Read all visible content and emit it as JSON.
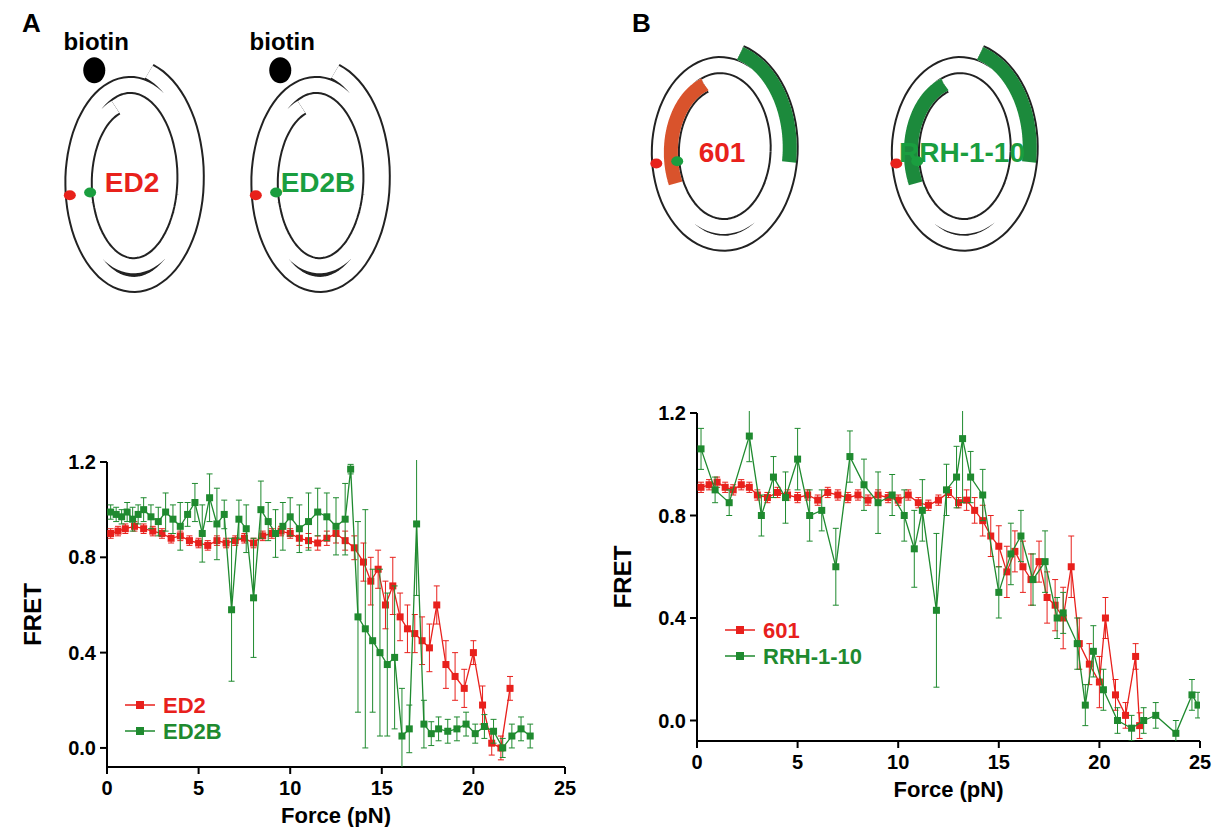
{
  "chart_data": [
    {
      "type": "line",
      "panel": "A",
      "schematics": [
        {
          "label": "ED2",
          "color": "#e8211b",
          "tag": "biotin"
        },
        {
          "label": "ED2B",
          "color": "#1a9e3f",
          "tag": "biotin"
        }
      ],
      "x_label": "Force (pN)",
      "y_label": "FRET",
      "xlim": [
        0,
        25
      ],
      "xticks": [
        0,
        5,
        10,
        15,
        20,
        25
      ],
      "ylim": [
        -0.08,
        1.2
      ],
      "yticks": [
        {
          "value": 0,
          "label": "0.0"
        },
        0.4,
        0.8,
        {
          "value": 1.2,
          "label": "1.2"
        }
      ],
      "legend": "lower left",
      "series": [
        {
          "name": "ED2",
          "color": "#e8201c",
          "marker": "square",
          "line_style": "solid",
          "x": [
            0.2,
            0.6,
            1.0,
            1.5,
            2.0,
            2.5,
            3.0,
            3.5,
            4.0,
            4.5,
            5.0,
            5.5,
            6.0,
            6.5,
            7.0,
            7.5,
            8.0,
            8.5,
            9.0,
            9.5,
            10.0,
            10.5,
            11.0,
            11.5,
            12.0,
            12.5,
            13.0,
            13.5,
            14.0,
            14.4,
            14.8,
            15.2,
            15.6,
            16.0,
            16.4,
            16.8,
            17.2,
            17.6,
            18.0,
            18.5,
            19.0,
            19.5,
            20.0,
            20.5,
            21.0,
            21.5,
            22.0
          ],
          "values": [
            0.9,
            0.91,
            0.92,
            0.93,
            0.92,
            0.91,
            0.9,
            0.88,
            0.89,
            0.87,
            0.86,
            0.85,
            0.87,
            0.86,
            0.87,
            0.88,
            0.86,
            0.89,
            0.9,
            0.91,
            0.9,
            0.88,
            0.87,
            0.86,
            0.88,
            0.9,
            0.87,
            0.84,
            0.78,
            0.7,
            0.75,
            0.6,
            0.68,
            0.55,
            0.5,
            0.48,
            0.45,
            0.42,
            0.6,
            0.35,
            0.3,
            0.25,
            0.4,
            0.18,
            0.02,
            0.0,
            0.25
          ],
          "errors": [
            0.02,
            0.02,
            0.02,
            0.02,
            0.02,
            0.02,
            0.02,
            0.02,
            0.02,
            0.02,
            0.02,
            0.02,
            0.02,
            0.02,
            0.02,
            0.02,
            0.02,
            0.02,
            0.02,
            0.02,
            0.02,
            0.03,
            0.03,
            0.03,
            0.03,
            0.04,
            0.04,
            0.05,
            0.08,
            0.1,
            0.08,
            0.1,
            0.12,
            0.1,
            0.1,
            0.08,
            0.1,
            0.1,
            0.08,
            0.1,
            0.1,
            0.08,
            0.05,
            0.08,
            0.05,
            0.05,
            0.05
          ]
        },
        {
          "name": "ED2B",
          "color": "#1f8a2f",
          "marker": "square",
          "line_style": "solid",
          "x": [
            0.2,
            0.5,
            0.8,
            1.1,
            1.4,
            1.7,
            2.0,
            2.4,
            2.8,
            3.2,
            3.6,
            4.0,
            4.4,
            4.8,
            5.2,
            5.6,
            6.0,
            6.4,
            6.8,
            7.2,
            7.6,
            8.0,
            8.4,
            8.8,
            9.2,
            9.6,
            10.0,
            10.5,
            11.0,
            11.5,
            12.0,
            12.5,
            13.0,
            13.3,
            13.7,
            14.1,
            14.5,
            14.9,
            15.3,
            15.7,
            16.1,
            16.5,
            16.9,
            17.3,
            17.7,
            18.1,
            18.6,
            19.1,
            19.6,
            20.1,
            20.6,
            21.1,
            21.6,
            22.1,
            22.6,
            23.1
          ],
          "values": [
            0.99,
            0.98,
            0.97,
            0.99,
            0.96,
            0.98,
            1.0,
            0.97,
            0.95,
            0.99,
            0.96,
            0.93,
            0.98,
            1.03,
            0.9,
            1.05,
            0.94,
            0.98,
            0.58,
            0.96,
            0.92,
            0.63,
            1.0,
            0.95,
            0.9,
            0.93,
            0.97,
            0.92,
            0.95,
            0.99,
            0.97,
            0.93,
            0.96,
            1.17,
            0.55,
            0.5,
            0.45,
            0.4,
            0.35,
            0.38,
            0.05,
            0.08,
            0.94,
            0.1,
            0.06,
            0.08,
            0.07,
            0.08,
            0.1,
            0.06,
            0.09,
            0.07,
            0.0,
            0.05,
            0.08,
            0.05
          ],
          "errors": [
            0.03,
            0.03,
            0.03,
            0.04,
            0.05,
            0.04,
            0.05,
            0.05,
            0.06,
            0.08,
            0.06,
            0.1,
            0.05,
            0.08,
            0.12,
            0.1,
            0.15,
            0.06,
            0.3,
            0.08,
            0.1,
            0.25,
            0.12,
            0.08,
            0.1,
            0.1,
            0.08,
            0.1,
            0.12,
            0.1,
            0.1,
            0.12,
            0.15,
            0.02,
            0.4,
            0.5,
            0.3,
            0.35,
            0.3,
            0.3,
            0.2,
            0.1,
            0.3,
            0.1,
            0.05,
            0.05,
            0.05,
            0.05,
            0.05,
            0.04,
            0.05,
            0.05,
            0.04,
            0.05,
            0.05,
            0.05
          ]
        }
      ]
    },
    {
      "type": "line",
      "panel": "B",
      "schematics": [
        {
          "label": "601",
          "color": "#e8211b",
          "segment_colors": [
            "#d9532c",
            "#1c8a3c"
          ]
        },
        {
          "label": "RRH-1-10",
          "color": "#1a9e3f",
          "segment_colors": [
            "#1c8a3c",
            "#1c8a3c"
          ]
        }
      ],
      "x_label": "Force (pN)",
      "y_label": "FRET",
      "xlim": [
        0,
        25
      ],
      "xticks": [
        0,
        5,
        10,
        15,
        20,
        25
      ],
      "ylim": [
        -0.08,
        1.2
      ],
      "yticks": [
        {
          "value": 0,
          "label": "0.0"
        },
        0.4,
        0.8,
        {
          "value": 1.2,
          "label": "1.2"
        }
      ],
      "legend": "lower left",
      "series": [
        {
          "name": "601",
          "color": "#e8201c",
          "marker": "square",
          "line_style": "solid",
          "x": [
            0.2,
            0.6,
            1.0,
            1.4,
            1.8,
            2.2,
            2.6,
            3.0,
            3.5,
            4.0,
            4.5,
            5.0,
            5.5,
            6.0,
            6.5,
            7.0,
            7.5,
            8.0,
            8.5,
            9.0,
            9.5,
            10.0,
            10.5,
            11.0,
            11.5,
            12.0,
            12.5,
            13.0,
            13.4,
            13.8,
            14.2,
            14.6,
            15.0,
            15.4,
            15.8,
            16.2,
            16.6,
            17.0,
            17.4,
            17.8,
            18.2,
            18.6,
            19.0,
            19.5,
            20.0,
            20.3,
            20.8,
            21.3,
            21.8,
            22.0
          ],
          "values": [
            0.91,
            0.92,
            0.93,
            0.91,
            0.9,
            0.92,
            0.91,
            0.88,
            0.87,
            0.89,
            0.88,
            0.87,
            0.88,
            0.86,
            0.89,
            0.88,
            0.87,
            0.88,
            0.86,
            0.88,
            0.87,
            0.86,
            0.88,
            0.85,
            0.84,
            0.86,
            0.89,
            0.85,
            0.86,
            0.82,
            0.78,
            0.72,
            0.68,
            0.58,
            0.66,
            0.6,
            0.55,
            0.62,
            0.48,
            0.45,
            0.4,
            0.6,
            0.3,
            0.22,
            0.15,
            0.4,
            0.1,
            0.02,
            0.25,
            -0.02
          ],
          "errors": [
            0.02,
            0.02,
            0.02,
            0.02,
            0.02,
            0.02,
            0.02,
            0.02,
            0.02,
            0.02,
            0.02,
            0.02,
            0.02,
            0.02,
            0.02,
            0.02,
            0.02,
            0.02,
            0.02,
            0.02,
            0.02,
            0.02,
            0.02,
            0.02,
            0.02,
            0.02,
            0.02,
            0.02,
            0.04,
            0.05,
            0.06,
            0.08,
            0.08,
            0.1,
            0.08,
            0.1,
            0.1,
            0.08,
            0.1,
            0.1,
            0.12,
            0.12,
            0.1,
            0.08,
            0.1,
            0.08,
            0.06,
            0.05,
            0.05,
            0.05
          ]
        },
        {
          "name": "RRH-1-10",
          "color": "#1f8a2f",
          "marker": "square",
          "line_style": "solid",
          "x": [
            0.2,
            0.9,
            1.6,
            2.6,
            3.2,
            3.8,
            4.4,
            5.0,
            5.6,
            6.2,
            6.9,
            7.6,
            8.3,
            9.0,
            9.7,
            10.3,
            10.8,
            11.2,
            11.9,
            12.4,
            12.9,
            13.2,
            13.6,
            14.2,
            15.0,
            15.6,
            16.1,
            16.7,
            17.3,
            17.9,
            18.2,
            18.9,
            19.3,
            19.7,
            20.2,
            20.9,
            21.6,
            22.2,
            22.8,
            23.8,
            24.6,
            24.9
          ],
          "values": [
            1.06,
            0.9,
            0.85,
            1.11,
            0.8,
            0.95,
            0.87,
            1.02,
            0.8,
            0.82,
            0.6,
            1.03,
            0.92,
            0.85,
            0.88,
            0.8,
            0.67,
            0.82,
            0.43,
            0.9,
            0.95,
            1.1,
            0.95,
            0.88,
            0.5,
            0.65,
            0.72,
            0.55,
            0.62,
            0.4,
            0.42,
            0.3,
            0.06,
            0.27,
            0.12,
            0.0,
            -0.03,
            0.0,
            0.02,
            -0.05,
            0.1,
            0.06
          ],
          "errors": [
            0.08,
            0.05,
            0.05,
            0.1,
            0.08,
            0.08,
            0.1,
            0.12,
            0.1,
            0.08,
            0.15,
            0.1,
            0.1,
            0.12,
            0.08,
            0.1,
            0.15,
            0.12,
            0.3,
            0.1,
            0.12,
            0.25,
            0.1,
            0.1,
            0.1,
            0.12,
            0.1,
            0.1,
            0.12,
            0.08,
            0.08,
            0.1,
            0.08,
            0.1,
            0.08,
            0.05,
            0.05,
            0.05,
            0.05,
            0.05,
            0.06,
            0.05
          ]
        }
      ]
    }
  ]
}
